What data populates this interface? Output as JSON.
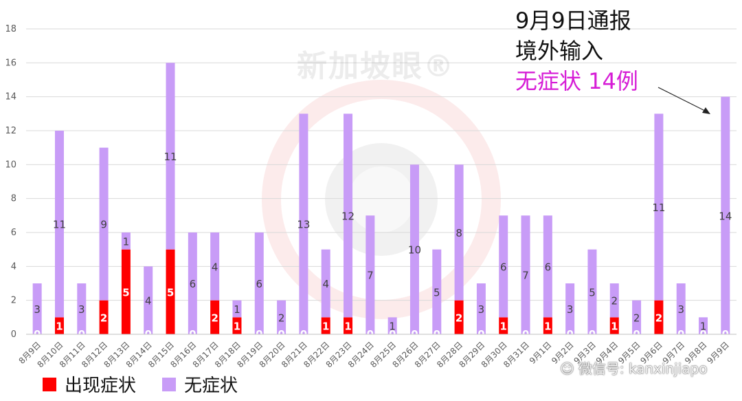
{
  "chart_data": {
    "type": "bar",
    "stacked": true,
    "categories": [
      "8月9日",
      "8月10日",
      "8月11日",
      "8月12日",
      "8月13日",
      "8月14日",
      "8月15日",
      "8月16日",
      "8月17日",
      "8月18日",
      "8月19日",
      "8月20日",
      "8月21日",
      "8月22日",
      "8月23日",
      "8月24日",
      "8月25日",
      "8月26日",
      "8月27日",
      "8月28日",
      "8月29日",
      "8月30日",
      "8月31日",
      "9月1日",
      "9月2日",
      "9月3日",
      "9月4日",
      "9月5日",
      "9月6日",
      "9月7日",
      "9月8日",
      "9月9日"
    ],
    "series": [
      {
        "name": "出现症状",
        "color": "#ff0000",
        "values": [
          0,
          1,
          0,
          2,
          5,
          0,
          5,
          0,
          2,
          1,
          0,
          0,
          0,
          1,
          1,
          0,
          0,
          0,
          0,
          2,
          0,
          1,
          0,
          1,
          0,
          0,
          1,
          0,
          2,
          0,
          0,
          0
        ]
      },
      {
        "name": "无症状",
        "color": "#c89cf7",
        "values": [
          3,
          11,
          3,
          9,
          1,
          4,
          11,
          6,
          4,
          1,
          6,
          2,
          13,
          4,
          12,
          7,
          1,
          10,
          5,
          8,
          3,
          6,
          7,
          6,
          3,
          5,
          2,
          2,
          11,
          3,
          1,
          14
        ]
      }
    ],
    "ylim": [
      0,
      18
    ],
    "yticks": [
      0,
      2,
      4,
      6,
      8,
      10,
      12,
      14,
      16,
      18
    ],
    "grid": true,
    "legend_position": "bottom-left"
  },
  "annotation": {
    "line1": "9月9日通报",
    "line2": "境外输入",
    "line3": "无症状 14例"
  },
  "legend": {
    "symptomatic": "出现症状",
    "asymptomatic": "无症状"
  },
  "watermark": {
    "text": "新加坡眼®",
    "wechat": "微信号: kanxinjiapo"
  }
}
